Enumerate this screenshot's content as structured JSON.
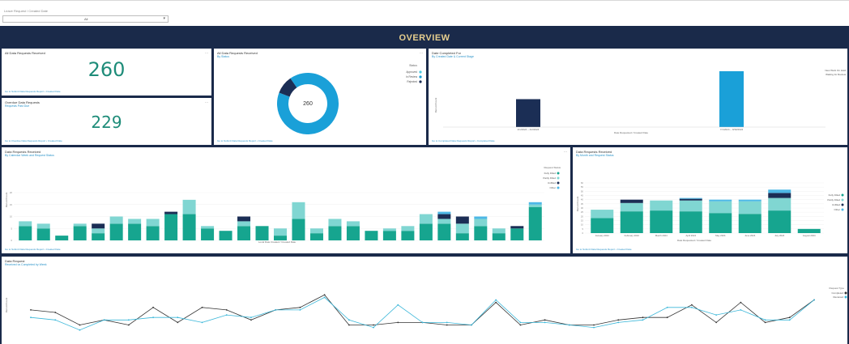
{
  "filter": {
    "label": "Leave Request / Created Date",
    "value": "All"
  },
  "header": {
    "title": "OVERVIEW"
  },
  "cards": {
    "total": {
      "title": "All Data Requests Received",
      "value": "260",
      "footer": "Go to Submit Data Requests Report • Created Date"
    },
    "overdue": {
      "title": "Overdue Data Requests",
      "subtitle": "Requests Past Due",
      "value": "229",
      "footer": "Go to Overdue Data Requests Report • Created Date"
    },
    "donut": {
      "title": "All Data Requests Received",
      "subtitle": "By Status",
      "center": "260",
      "legend_title": "Status",
      "legend": [
        {
          "label": "Approved",
          "color": "#4cc9e0"
        },
        {
          "label": "In Review",
          "color": "#1aa0d8"
        },
        {
          "label": "Rejected",
          "color": "#1b2e55"
        }
      ],
      "footer": "Go to Submit Data Requests Report • Created Date"
    },
    "completed": {
      "title": "Date Completed For",
      "subtitle": "By Created Date & Current Stage",
      "ylabel": "Record Count",
      "xlabel": "Date Requested / Created Date",
      "categories": [
        "2/1/2024 – 4/2/2024",
        "7/1/2024 – 9/30/2024"
      ],
      "legend": [
        "New Work On Hold",
        "Waiting for Review"
      ],
      "footer": "Go to Completed Data Requests Report • Completed Date"
    },
    "bar1": {
      "title": "Data Requests Received",
      "subtitle": "By Calendar Week and Request Status",
      "ylabel": "Record Count",
      "xlabel": "Local Date Created / Created Date",
      "legend_title": "Request Status",
      "legend": [
        "Fully Filled",
        "Partly Filled",
        "Unfilled",
        "Other"
      ],
      "footer": "Go to Submit Data Requests Report • Created Date"
    },
    "bar2": {
      "title": "Data Requests Received",
      "subtitle": "By Month and Request Status",
      "ylabel": "Record Count",
      "xlabel": "Date Requested / Created Date",
      "legend": [
        "Fully Filled",
        "Partly Filled",
        "Unfilled",
        "Other"
      ],
      "footer": "Go to Submit Data Requests Report • Created Date"
    },
    "line": {
      "title": "Data Request",
      "subtitle": "Received vs Completed by Week",
      "ylabel": "Record Count",
      "legend_title": "Request Type",
      "legend": [
        "Completed",
        "Received"
      ]
    }
  },
  "chart_data": [
    {
      "type": "pie",
      "title": "All Data Requests Received",
      "values": [
        {
          "label": "In Review",
          "value": 235
        },
        {
          "label": "Rejected",
          "value": 25
        }
      ]
    },
    {
      "type": "bar",
      "title": "Date Completed For",
      "categories": [
        "2/1/2024 – 4/2/2024",
        "7/1/2024 – 9/30/2024"
      ],
      "values": [
        1,
        2
      ],
      "colors": [
        "#1b2e55",
        "#1aa0d8"
      ]
    },
    {
      "type": "bar",
      "title": "Data Requests Received",
      "stacked": true,
      "ylim": [
        0,
        20
      ],
      "series": [
        {
          "name": "Fully Filled",
          "color": "#16a58f",
          "values": [
            6,
            5,
            2,
            6,
            3,
            7,
            7,
            6,
            11,
            11,
            5,
            4,
            6,
            6,
            2,
            9,
            3,
            6,
            6,
            4,
            4,
            4,
            7,
            7,
            3,
            6,
            3,
            5,
            14
          ]
        },
        {
          "name": "Partly Filled",
          "color": "#80d6d2",
          "values": [
            2,
            2,
            0,
            1,
            2,
            3,
            2,
            3,
            0,
            6,
            1,
            0,
            2,
            0,
            3,
            7,
            2,
            3,
            2,
            0,
            1,
            2,
            4,
            2,
            4,
            3,
            2,
            0,
            1
          ]
        },
        {
          "name": "Unfilled",
          "color": "#1b2e55",
          "values": [
            0,
            0,
            0,
            0,
            2,
            0,
            0,
            0,
            1,
            0,
            0,
            0,
            2,
            0,
            0,
            0,
            0,
            0,
            0,
            0,
            0,
            0,
            0,
            2,
            3,
            0,
            0,
            1,
            0
          ]
        },
        {
          "name": "Other",
          "color": "#4db8e6",
          "values": [
            0,
            0,
            0,
            0,
            0,
            0,
            0,
            0,
            0,
            0,
            0,
            0,
            0,
            0,
            0,
            0,
            0,
            0,
            0,
            0,
            0,
            0,
            0,
            1,
            0,
            1,
            0,
            0,
            1
          ]
        }
      ]
    },
    {
      "type": "bar",
      "title": "Data Requests Received",
      "stacked": true,
      "categories": [
        "January 2024",
        "February 2024",
        "March 2024",
        "April 2024",
        "May 2024",
        "June 2024",
        "July 2024",
        "August 2024"
      ],
      "ylim": [
        0,
        60
      ],
      "series": [
        {
          "name": "Fully Filled",
          "color": "#16a58f",
          "values": [
            18,
            26,
            27,
            26,
            24,
            23,
            27,
            5
          ]
        },
        {
          "name": "Partly Filled",
          "color": "#80d6d2",
          "values": [
            10,
            10,
            12,
            13,
            14,
            15,
            15,
            0
          ]
        },
        {
          "name": "Unfilled",
          "color": "#1b2e55",
          "values": [
            0,
            4,
            0,
            2,
            0,
            0,
            6,
            0
          ]
        },
        {
          "name": "Other",
          "color": "#4db8e6",
          "values": [
            0,
            0,
            0,
            1,
            2,
            2,
            4,
            0
          ]
        }
      ]
    },
    {
      "type": "line",
      "title": "Data Request",
      "ylim": [
        0,
        20
      ],
      "series": [
        {
          "name": "Completed",
          "color": "#333333",
          "values": [
            11,
            10,
            5,
            7,
            5,
            12,
            6,
            12,
            11,
            7,
            11,
            12,
            17,
            5,
            5,
            6,
            6,
            5,
            5,
            14,
            5,
            7,
            5,
            5,
            7,
            8,
            8,
            13,
            6,
            14,
            6,
            8,
            15
          ]
        },
        {
          "name": "Received",
          "color": "#3bb7d9",
          "values": [
            8,
            7,
            3,
            7,
            7,
            8,
            8,
            6,
            9,
            8,
            11,
            11,
            16,
            7,
            4,
            13,
            6,
            6,
            5,
            15,
            6,
            6,
            5,
            4,
            6,
            7,
            12,
            12,
            9,
            11,
            7,
            7,
            15
          ]
        }
      ]
    }
  ]
}
